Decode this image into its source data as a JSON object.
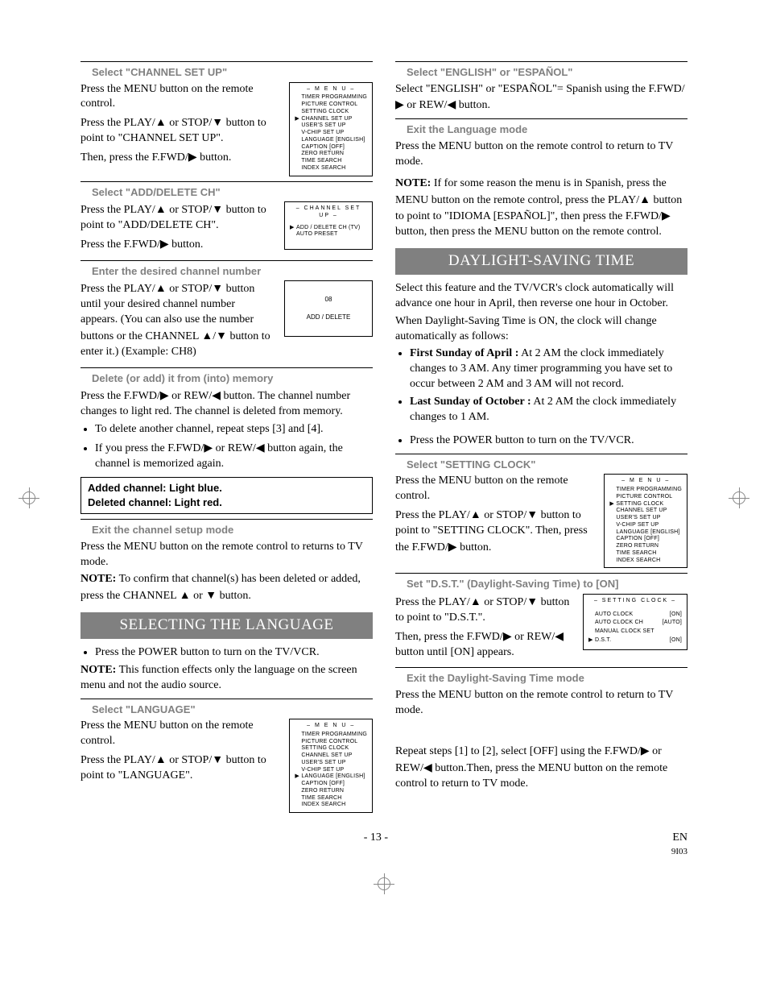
{
  "glyph": {
    "up": "▲",
    "down": "▼",
    "right": "▶",
    "left": "◀",
    "play": "▶"
  },
  "left": {
    "s1": {
      "head": "Select \"CHANNEL SET UP\"",
      "p1a": "Press the MENU button on the remote control.",
      "p1b_pre": "Press the PLAY/",
      "p1b_mid": " or STOP/",
      "p1b_post": " button to point to \"CHANNEL SET UP\".",
      "p2_pre": "Then, press the F.FWD/",
      "p2_post": " button."
    },
    "s2": {
      "head": "Select \"ADD/DELETE CH\"",
      "p1_pre": "Press the PLAY/",
      "p1_mid": " or STOP/",
      "p1_post": " button to point to \"ADD/DELETE CH\".",
      "p2_pre": "Press the F.FWD/",
      "p2_post": " button."
    },
    "s3": {
      "head": "Enter the desired channel number",
      "p1_pre": "Press the PLAY/",
      "p1_mid": " or STOP/",
      "p1_post": " button until your desired channel number appears. (You can also use the number buttons  or the CHANNEL ",
      "p1_sep": "/",
      "p1_end": " button to enter it.) (Example: CH8)"
    },
    "s4": {
      "head": "Delete (or add) it from (into) memory",
      "p1_pre": "Press the F.FWD/",
      "p1_mid": " or REW/",
      "p1_post": " button. The channel number changes to light red. The channel is deleted from memory.",
      "b1": "To delete another channel, repeat steps [3] and [4].",
      "b2_pre": "If you press the F.FWD/",
      "b2_mid": " or REW/",
      "b2_post": " button again, the channel is memorized again.",
      "box1": "Added channel: Light blue.",
      "box2": "Deleted channel: Light red."
    },
    "s5": {
      "head": "Exit the channel setup mode",
      "p1": "Press the MENU button on the remote control to returns to TV mode.",
      "note_label": "NOTE:",
      "note_pre": " To confirm that channel(s) has been deleted or added, press the CHANNEL ",
      "note_mid": " or ",
      "note_post": " button."
    },
    "lang_section": "SELECTING THE LANGUAGE",
    "lang_intro_b": "Press the POWER button to turn on the TV/VCR.",
    "lang_note_label": "NOTE:",
    "lang_note": " This function effects only the language on the screen menu and not the audio source.",
    "s6": {
      "head": "Select \"LANGUAGE\"",
      "p1": "Press the MENU button on the remote control.",
      "p2_pre": "Press the PLAY/",
      "p2_mid": " or STOP/",
      "p2_post": " button to point to \"LANGUAGE\"."
    }
  },
  "right": {
    "s1": {
      "head": "Select \"ENGLISH\" or \"ESPAÑOL\"",
      "p1_pre": "Select \"ENGLISH\" or \"ESPAÑOL\"= Spanish using the F.FWD/",
      "p1_mid": " or REW/",
      "p1_post": " button."
    },
    "s2": {
      "head": "Exit the Language mode",
      "p1": "Press the MENU button on the remote control to return to TV mode."
    },
    "note_label": "NOTE:",
    "note_pre": " If for some reason the menu is in Spanish, press the MENU button on the remote control, press the PLAY/",
    "note_mid": " button to point to \"IDIOMA [ESPAÑOL]\", then press the F.FWD/",
    "note_post": " button, then press the MENU button on the remote control.",
    "dst_section": "DAYLIGHT-SAVING TIME",
    "dst_intro": "Select this feature and the TV/VCR's clock automatically will advance one hour in April, then reverse one hour in October.",
    "dst_p2": "When Daylight-Saving Time is ON, the clock will change automatically as follows:",
    "dst_b1_label": "First Sunday of April :",
    "dst_b1": " At 2 AM the clock immediately changes to 3 AM. Any timer programming you have set to occur between 2 AM and 3 AM will not record.",
    "dst_b2_label": "Last Sunday of October :",
    "dst_b2": " At 2 AM the clock immediately changes to 1 AM.",
    "dst_b3": "Press the POWER button to turn on the TV/VCR.",
    "s3": {
      "head": "Select \"SETTING CLOCK\"",
      "p1": "Press the MENU button on the remote control.",
      "p2_pre": "Press the PLAY/",
      "p2_mid": " or STOP/",
      "p2_post": " button to point to \"SETTING CLOCK\". Then, press the F.FWD/",
      "p2_end": " button."
    },
    "s4": {
      "head": "Set \"D.S.T.\" (Daylight-Saving Time) to [ON]",
      "p1_pre": "Press the PLAY/",
      "p1_mid": " or STOP/",
      "p1_post": " button to point to \"D.S.T.\".",
      "p2_pre": "Then, press the F.FWD/",
      "p2_mid": " or REW/",
      "p2_post": " button until [ON] appears."
    },
    "s5": {
      "head": "Exit the Daylight-Saving Time mode",
      "p1": "Press the MENU button on the remote control to return to TV mode."
    },
    "tail_pre": "Repeat steps [1] to [2], select [OFF] using the F.FWD/",
    "tail_mid": " or REW/",
    "tail_post": " button.Then, press the MENU button on the remote control to return to TV mode."
  },
  "osd": {
    "menu_title": "– M E N U –",
    "menu_items": [
      "TIMER PROGRAMMING",
      "PICTURE CONTROL",
      "SETTING CLOCK",
      "CHANNEL SET UP",
      "USER'S SET UP",
      "V-CHIP SET UP",
      "LANGUAGE  [ENGLISH]",
      "CAPTION  [OFF]",
      "ZERO RETURN",
      "TIME SEARCH",
      "INDEX SEARCH"
    ],
    "menu_selected_chsetup": 3,
    "menu_selected_setclock": 2,
    "menu_selected_language": 6,
    "chsetup_title": "– CHANNEL SET UP –",
    "chsetup_items": [
      "ADD / DELETE CH (TV)",
      "AUTO PRESET"
    ],
    "chsetup_selected": 0,
    "ch_number": "08",
    "ch_mode": "ADD / DELETE",
    "setclock_title": "– SETTING CLOCK –",
    "setclock_rows": [
      {
        "label": "AUTO CLOCK",
        "val": "[ON]"
      },
      {
        "label": "AUTO CLOCK CH",
        "val": "[AUTO]"
      },
      {
        "label": "MANUAL CLOCK SET",
        "val": ""
      },
      {
        "label": "D.S.T.",
        "val": "[ON]"
      }
    ],
    "setclock_selected": 3
  },
  "footer": {
    "page": "- 13 -",
    "lang": "EN",
    "code": "9I03"
  }
}
